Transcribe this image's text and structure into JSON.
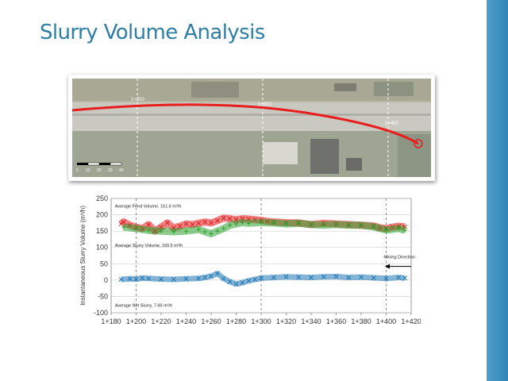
{
  "slide": {
    "title": "Slurry Volume Analysis",
    "accent_color": "#2e7ea6",
    "side_bar_color": "#3b8fc0"
  },
  "aerial_photo": {
    "station_labels": [
      "1+200",
      "1+300",
      "1+400"
    ],
    "scale_bar_ticks": [
      "0",
      "10",
      "20",
      "30",
      "40"
    ],
    "alignment_color": "#e81d1d",
    "end_marker_icon": "circle-target-icon"
  },
  "chart_data": {
    "type": "scatter",
    "title": "",
    "xlabel": "",
    "ylabel": "Instantaneous Slurry Volume (m³/h)",
    "x_tick_labels": [
      "1+180",
      "1+200",
      "1+220",
      "1+240",
      "1+260",
      "1+280",
      "1+300",
      "1+320",
      "1+340",
      "1+360",
      "1+380",
      "1+400",
      "1+420"
    ],
    "xlim": [
      1180,
      1420
    ],
    "y_ticks": [
      250,
      200,
      150,
      100,
      50,
      0,
      -50,
      -100
    ],
    "ylim": [
      -100,
      250
    ],
    "grid": true,
    "vertical_reference_lines": [
      1200,
      1300,
      1400
    ],
    "annotations": [
      {
        "text": "Average Feed Volume, 161.6 m³/h",
        "x": 1183,
        "y": 222
      },
      {
        "text": "Average Slurry Volume, 169.5 m³/h",
        "x": 1183,
        "y": 102
      },
      {
        "text": "Average Net Slurry, 7.69 m³/h",
        "x": 1183,
        "y": -82
      },
      {
        "text": "Mining Direction",
        "x": 1398,
        "y": 67
      }
    ],
    "mining_direction": "decreasing chainage",
    "series": [
      {
        "color": "#e31a1c",
        "marker": "x",
        "x": [
          1188,
          1190,
          1195,
          1200,
          1205,
          1210,
          1215,
          1220,
          1225,
          1230,
          1235,
          1240,
          1245,
          1250,
          1255,
          1260,
          1265,
          1270,
          1275,
          1280,
          1285,
          1290,
          1295,
          1300,
          1305,
          1310,
          1320,
          1330,
          1340,
          1350,
          1360,
          1370,
          1380,
          1390,
          1395,
          1400,
          1405,
          1410,
          1415
        ],
        "y": [
          172,
          178,
          168,
          162,
          158,
          170,
          150,
          162,
          175,
          160,
          165,
          172,
          170,
          174,
          178,
          175,
          182,
          190,
          188,
          185,
          188,
          187,
          185,
          183,
          180,
          178,
          176,
          175,
          170,
          174,
          172,
          170,
          168,
          166,
          160,
          158,
          162,
          165,
          163
        ]
      },
      {
        "color": "#2ca02c",
        "marker": "+",
        "x": [
          1190,
          1200,
          1210,
          1220,
          1230,
          1240,
          1250,
          1255,
          1260,
          1265,
          1270,
          1275,
          1280,
          1285,
          1290,
          1300,
          1310,
          1320,
          1330,
          1340,
          1350,
          1360,
          1370,
          1380,
          1390,
          1400,
          1410,
          1415
        ],
        "y": [
          162,
          158,
          152,
          150,
          148,
          150,
          155,
          148,
          142,
          150,
          158,
          168,
          172,
          176,
          174,
          176,
          175,
          172,
          174,
          170,
          168,
          170,
          168,
          168,
          163,
          153,
          158,
          152
        ]
      },
      {
        "color": "#1f77b4",
        "marker": "x",
        "x": [
          1188,
          1195,
          1200,
          1205,
          1210,
          1220,
          1230,
          1240,
          1250,
          1255,
          1260,
          1265,
          1270,
          1275,
          1280,
          1285,
          1290,
          1295,
          1300,
          1310,
          1320,
          1330,
          1340,
          1350,
          1360,
          1370,
          1380,
          1390,
          1400,
          1410,
          1415
        ],
        "y": [
          2,
          4,
          3,
          6,
          5,
          3,
          2,
          4,
          5,
          8,
          12,
          20,
          5,
          -5,
          -12,
          -8,
          -2,
          2,
          6,
          8,
          10,
          9,
          8,
          10,
          11,
          8,
          9,
          7,
          5,
          8,
          6
        ]
      }
    ]
  }
}
